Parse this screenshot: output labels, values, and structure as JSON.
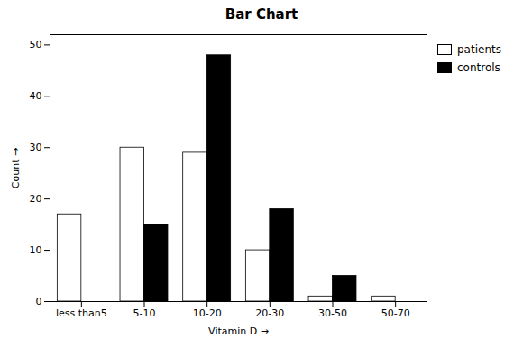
{
  "chart_data": {
    "type": "bar",
    "title": "Bar Chart",
    "xlabel": "Vitamin D",
    "ylabel": "Count",
    "categories": [
      "less than5",
      "5-10",
      "10-20",
      "20-30",
      "30-50",
      "50-70"
    ],
    "series": [
      {
        "name": "patients",
        "color": "#ffffff",
        "values": [
          17,
          30,
          29,
          10,
          1,
          1
        ]
      },
      {
        "name": "controls",
        "color": "#000000",
        "values": [
          0,
          15,
          48,
          18,
          5,
          0
        ]
      }
    ],
    "ylim": [
      0,
      52
    ],
    "yticks": [
      0,
      10,
      20,
      30,
      40,
      50
    ],
    "grid": false,
    "legend": "right"
  }
}
